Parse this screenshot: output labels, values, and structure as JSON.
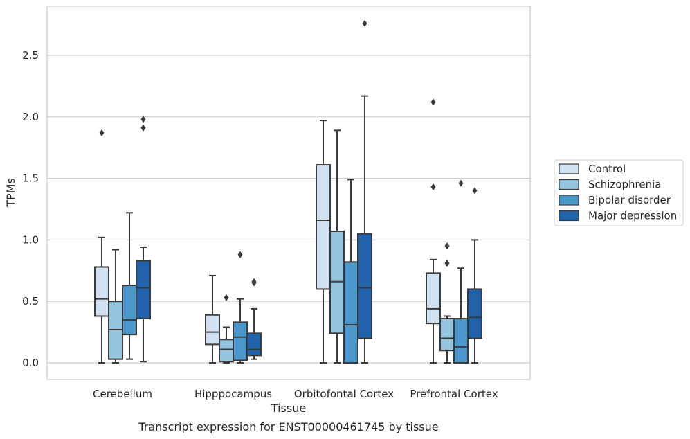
{
  "chart_data": {
    "type": "box",
    "caption": "Transcript expression for ENST00000461745 by tissue",
    "xlabel": "Tissue",
    "ylabel": "TPMs",
    "ylim": [
      -0.13,
      2.91
    ],
    "yticks": [
      0.0,
      0.5,
      1.0,
      1.5,
      2.0,
      2.5
    ],
    "ytick_labels": [
      "0.0",
      "0.5",
      "1.0",
      "1.5",
      "2.0",
      "2.5"
    ],
    "grid": "horizontal",
    "legend_position": "right",
    "categories": [
      "Cerebellum",
      "Hipppocampus",
      "Orbitofontal Cortex",
      "Prefrontal Cortex"
    ],
    "series": [
      {
        "name": "Control",
        "color": "#d0e1f2",
        "boxes": [
          {
            "whisker_low": 0.0,
            "q1": 0.38,
            "median": 0.52,
            "q3": 0.78,
            "whisker_high": 1.02,
            "outliers": [
              1.87
            ]
          },
          {
            "whisker_low": 0.0,
            "q1": 0.15,
            "median": 0.25,
            "q3": 0.39,
            "whisker_high": 0.71,
            "outliers": []
          },
          {
            "whisker_low": 0.0,
            "q1": 0.6,
            "median": 1.16,
            "q3": 1.61,
            "whisker_high": 1.97,
            "outliers": []
          },
          {
            "whisker_low": 0.0,
            "q1": 0.32,
            "median": 0.44,
            "q3": 0.73,
            "whisker_high": 0.84,
            "outliers": [
              1.43,
              2.12
            ]
          }
        ]
      },
      {
        "name": "Schizophrenia",
        "color": "#94c4df",
        "boxes": [
          {
            "whisker_low": 0.0,
            "q1": 0.03,
            "median": 0.27,
            "q3": 0.5,
            "whisker_high": 0.92,
            "outliers": []
          },
          {
            "whisker_low": 0.0,
            "q1": 0.01,
            "median": 0.11,
            "q3": 0.19,
            "whisker_high": 0.29,
            "outliers": [
              0.53
            ]
          },
          {
            "whisker_low": 0.0,
            "q1": 0.24,
            "median": 0.66,
            "q3": 1.07,
            "whisker_high": 1.89,
            "outliers": []
          },
          {
            "whisker_low": 0.0,
            "q1": 0.1,
            "median": 0.2,
            "q3": 0.36,
            "whisker_high": 0.38,
            "outliers": [
              0.81,
              0.95
            ]
          }
        ]
      },
      {
        "name": "Bipolar disorder",
        "color": "#4a98c9",
        "boxes": [
          {
            "whisker_low": 0.03,
            "q1": 0.23,
            "median": 0.35,
            "q3": 0.63,
            "whisker_high": 1.22,
            "outliers": []
          },
          {
            "whisker_low": 0.0,
            "q1": 0.02,
            "median": 0.21,
            "q3": 0.33,
            "whisker_high": 0.52,
            "outliers": [
              0.88
            ]
          },
          {
            "whisker_low": 0.0,
            "q1": 0.0,
            "median": 0.31,
            "q3": 0.82,
            "whisker_high": 1.49,
            "outliers": []
          },
          {
            "whisker_low": 0.0,
            "q1": 0.0,
            "median": 0.13,
            "q3": 0.36,
            "whisker_high": 0.77,
            "outliers": [
              1.46
            ]
          }
        ]
      },
      {
        "name": "Major depression",
        "color": "#2163aa",
        "boxes": [
          {
            "whisker_low": 0.01,
            "q1": 0.36,
            "median": 0.61,
            "q3": 0.83,
            "whisker_high": 0.94,
            "outliers": [
              1.91,
              1.98
            ]
          },
          {
            "whisker_low": 0.03,
            "q1": 0.06,
            "median": 0.11,
            "q3": 0.24,
            "whisker_high": 0.44,
            "outliers": [
              0.65,
              0.66
            ]
          },
          {
            "whisker_low": 0.0,
            "q1": 0.2,
            "median": 0.61,
            "q3": 1.05,
            "whisker_high": 2.17,
            "outliers": [
              2.76
            ]
          },
          {
            "whisker_low": 0.0,
            "q1": 0.2,
            "median": 0.37,
            "q3": 0.6,
            "whisker_high": 1.0,
            "outliers": [
              1.4
            ]
          }
        ]
      }
    ]
  },
  "colors": {
    "grid": "#cccccc",
    "frame": "#cccccc",
    "line": "#3a3a3a",
    "outlier": "#3a3a3a"
  }
}
